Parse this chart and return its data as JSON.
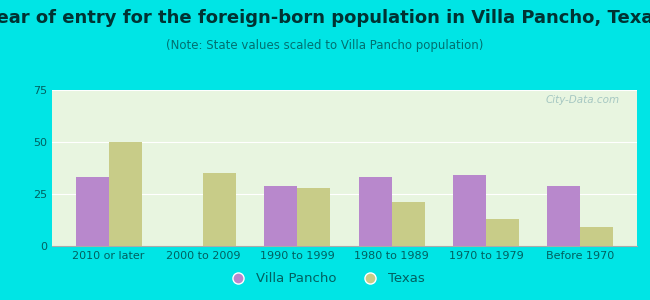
{
  "title": "Year of entry for the foreign-born population in Villa Pancho, Texas",
  "subtitle": "(Note: State values scaled to Villa Pancho population)",
  "categories": [
    "2010 or later",
    "2000 to 2009",
    "1990 to 1999",
    "1980 to 1989",
    "1970 to 1979",
    "Before 1970"
  ],
  "villa_pancho": [
    33,
    0,
    29,
    33,
    34,
    29
  ],
  "texas": [
    50,
    35,
    28,
    21,
    13,
    9
  ],
  "villa_pancho_color": "#b888cc",
  "texas_color": "#c8cc88",
  "background_color": "#00e5e5",
  "plot_bg_color": "#e8f5e0",
  "ylim": [
    0,
    75
  ],
  "yticks": [
    0,
    25,
    50,
    75
  ],
  "bar_width": 0.35,
  "title_fontsize": 13,
  "subtitle_fontsize": 8.5,
  "tick_fontsize": 8,
  "legend_fontsize": 9.5,
  "tick_color": "#006060",
  "title_color": "#003333",
  "subtitle_color": "#007070"
}
